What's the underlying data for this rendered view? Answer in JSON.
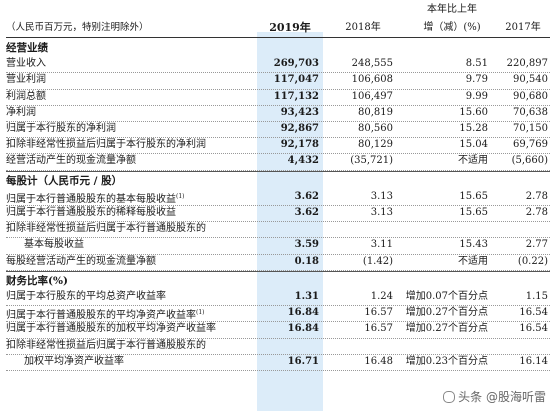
{
  "header": {
    "note": "（人民币百万元，特别注明除外）",
    "y2019": "2019年",
    "y2018": "2018年",
    "change_line1": "本年比上年",
    "change_line2": "增（减）(%)",
    "y2017": "2017年"
  },
  "sections": [
    {
      "title": "经营业绩",
      "rows": [
        {
          "label": "营业收入",
          "v2019": "269,703",
          "v2018": "248,555",
          "change": "8.51",
          "v2017": "220,897"
        },
        {
          "label": "营业利润",
          "v2019": "117,047",
          "v2018": "106,608",
          "change": "9.79",
          "v2017": "90,540"
        },
        {
          "label": "利润总额",
          "v2019": "117,132",
          "v2018": "106,497",
          "change": "9.99",
          "v2017": "90,680"
        },
        {
          "label": "净利润",
          "v2019": "93,423",
          "v2018": "80,819",
          "change": "15.60",
          "v2017": "70,638"
        },
        {
          "label": "归属于本行股东的净利润",
          "v2019": "92,867",
          "v2018": "80,560",
          "change": "15.28",
          "v2017": "70,150"
        },
        {
          "label": "扣除非经常性损益后归属于本行股东的净利润",
          "v2019": "92,178",
          "v2018": "80,129",
          "change": "15.04",
          "v2017": "69,769"
        },
        {
          "label": "经营活动产生的现金流量净额",
          "v2019": "4,432",
          "v2018": "(35,721)",
          "change": "不适用",
          "v2017": "(5,660)"
        }
      ]
    },
    {
      "title": "每股计（人民币元 / 股）",
      "rows": [
        {
          "label": "归属于本行普通股股东的基本每股收益",
          "sup": "(1)",
          "v2019": "3.62",
          "v2018": "3.13",
          "change": "15.65",
          "v2017": "2.78"
        },
        {
          "label": "归属于本行普通股股东的稀释每股收益",
          "v2019": "3.62",
          "v2018": "3.13",
          "change": "15.65",
          "v2017": "2.78"
        },
        {
          "label": "扣除非经常性损益后归属于本行普通股股东的",
          "v2019": "",
          "v2018": "",
          "change": "",
          "v2017": ""
        },
        {
          "label": "基本每股收益",
          "indent": true,
          "v2019": "3.59",
          "v2018": "3.11",
          "change": "15.43",
          "v2017": "2.77"
        },
        {
          "label": "每股经营活动产生的现金流量净额",
          "v2019": "0.18",
          "v2018": "(1.42)",
          "change": "不适用",
          "v2017": "(0.22)"
        }
      ]
    },
    {
      "title": "财务比率(%)",
      "rows": [
        {
          "label": "归属于本行股东的平均总资产收益率",
          "v2019": "1.31",
          "v2018": "1.24",
          "change": "增加0.07个百分点",
          "v2017": "1.15"
        },
        {
          "label": "归属于本行普通股股东的平均净资产收益率",
          "sup": "(1)",
          "v2019": "16.84",
          "v2018": "16.57",
          "change": "增加0.27个百分点",
          "v2017": "16.54"
        },
        {
          "label": "归属于本行普通股股东的加权平均净资产收益率",
          "v2019": "16.84",
          "v2018": "16.57",
          "change": "增加0.27个百分点",
          "v2017": "16.54"
        },
        {
          "label": "扣除非经常性损益后归属于本行普通股股东的",
          "v2019": "",
          "v2018": "",
          "change": "",
          "v2017": ""
        },
        {
          "label": "加权平均净资产收益率",
          "indent": true,
          "v2019": "16.71",
          "v2018": "16.48",
          "change": "增加0.23个百分点",
          "v2017": "16.14"
        }
      ]
    }
  ],
  "watermark": "头条 @股海听雷",
  "colors": {
    "highlight_column": "#dcecf9"
  }
}
